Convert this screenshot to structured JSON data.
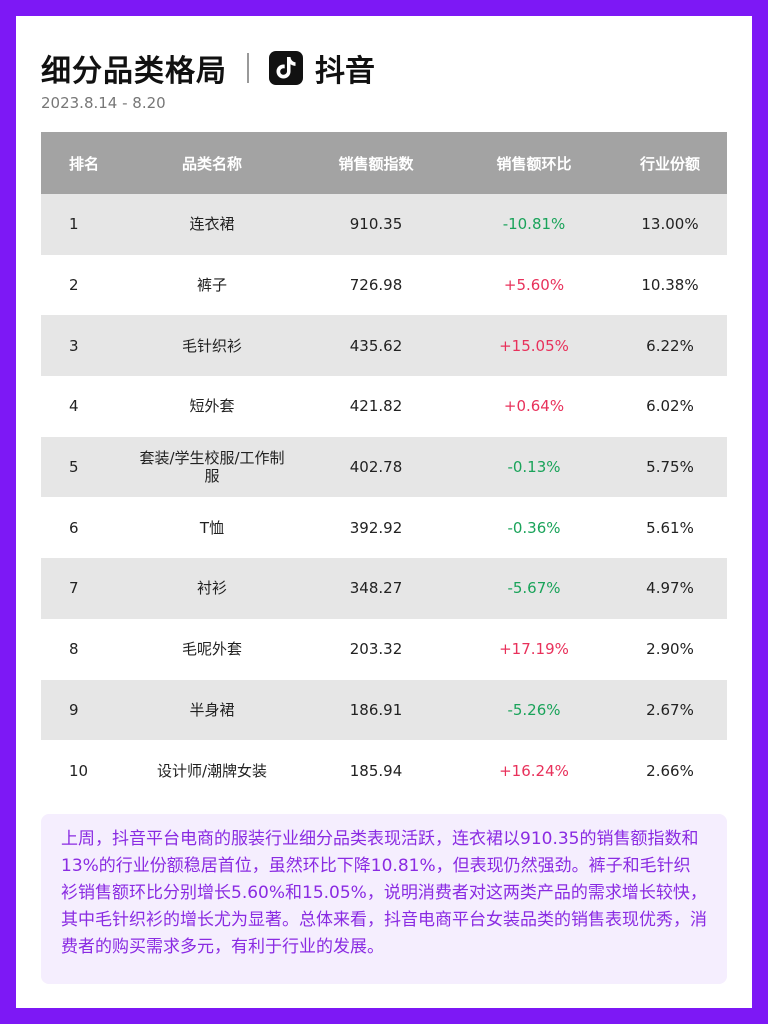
{
  "header": {
    "title": "细分品类格局",
    "brand": "抖音",
    "date": "2023.8.14 - 8.20"
  },
  "table": {
    "columns": [
      "排名",
      "品类名称",
      "销售额指数",
      "销售额环比",
      "行业份额"
    ],
    "rows": [
      {
        "rank": "1",
        "category": "连衣裙",
        "index": "910.35",
        "change": "-10.81%",
        "share": "13.00%"
      },
      {
        "rank": "2",
        "category": "裤子",
        "index": "726.98",
        "change": "+5.60%",
        "share": "10.38%"
      },
      {
        "rank": "3",
        "category": "毛针织衫",
        "index": "435.62",
        "change": "+15.05%",
        "share": "6.22%"
      },
      {
        "rank": "4",
        "category": "短外套",
        "index": "421.82",
        "change": "+0.64%",
        "share": "6.02%"
      },
      {
        "rank": "5",
        "category": "套装/学生校服/工作制服",
        "index": "402.78",
        "change": "-0.13%",
        "share": "5.75%"
      },
      {
        "rank": "6",
        "category": "T恤",
        "index": "392.92",
        "change": "-0.36%",
        "share": "5.61%"
      },
      {
        "rank": "7",
        "category": "衬衫",
        "index": "348.27",
        "change": "-5.67%",
        "share": "4.97%"
      },
      {
        "rank": "8",
        "category": "毛呢外套",
        "index": "203.32",
        "change": "+17.19%",
        "share": "2.90%"
      },
      {
        "rank": "9",
        "category": "半身裙",
        "index": "186.91",
        "change": "-5.26%",
        "share": "2.67%"
      },
      {
        "rank": "10",
        "category": "设计师/潮牌女装",
        "index": "185.94",
        "change": "+16.24%",
        "share": "2.66%"
      }
    ]
  },
  "summary": "上周，抖音平台电商的服装行业细分品类表现活跃，连衣裙以910.35的销售额指数和13%的行业份额稳居首位，虽然环比下降10.81%，但表现仍然强劲。裤子和毛针织衫销售额环比分别增长5.60%和15.05%，说明消费者对这两类产品的需求增长较快，其中毛针织衫的增长尤为显著。总体来看，抖音电商平台女装品类的销售表现优秀，消费者的购买需求多元，有利于行业的发展。",
  "colors": {
    "border": "#7d18f5",
    "header_bg": "#a3a3a3",
    "stripe": "#e6e6e6",
    "negative": "#1aa35a",
    "positive": "#e8315b",
    "summary_text": "#8a2be2",
    "summary_bg": "#f5eefe"
  },
  "icons": {
    "brand_logo": "douyin-logo-icon"
  }
}
